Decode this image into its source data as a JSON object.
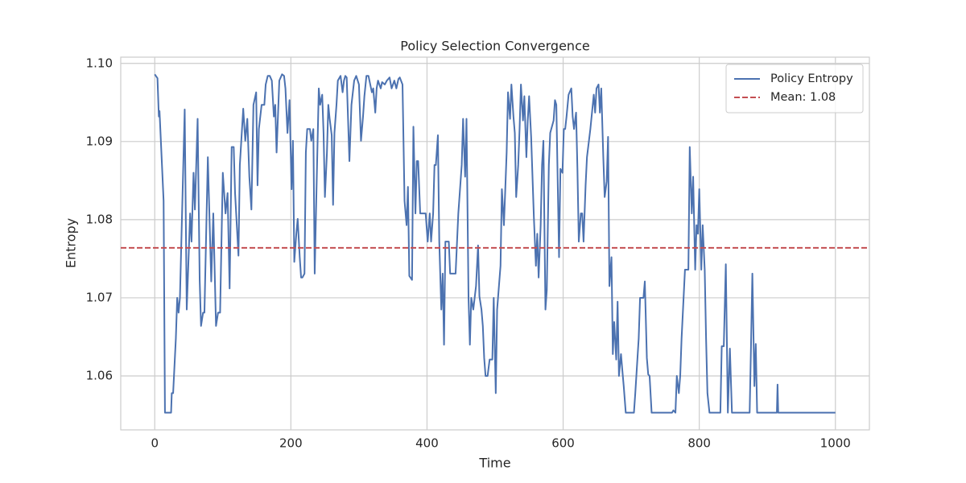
{
  "chart_data": {
    "type": "line",
    "title": "Policy Selection Convergence",
    "x_label": "Time",
    "y_label": "Entropy",
    "x": [
      0,
      4,
      6,
      7,
      13,
      15,
      24,
      25,
      27,
      31,
      33,
      35,
      37,
      44,
      47,
      52,
      54,
      57,
      59,
      63,
      66,
      68,
      71,
      73,
      78,
      83,
      86,
      90,
      93,
      96,
      100,
      104,
      107,
      110,
      113,
      116,
      118,
      123,
      125,
      130,
      133,
      136,
      139,
      142,
      145,
      149,
      151,
      153,
      157,
      161,
      163,
      166,
      169,
      172,
      175,
      177,
      179,
      183,
      187,
      190,
      192,
      195,
      198,
      201,
      203,
      205,
      208,
      210,
      213,
      215,
      217,
      220,
      222,
      224,
      228,
      230,
      233,
      235,
      237,
      241,
      243,
      246,
      248,
      250,
      253,
      255,
      257,
      260,
      262,
      264,
      267,
      269,
      273,
      276,
      278,
      280,
      282,
      286,
      289,
      293,
      296,
      300,
      303,
      306,
      308,
      311,
      314,
      319,
      321,
      324,
      326,
      328,
      332,
      334,
      338,
      341,
      345,
      348,
      352,
      355,
      358,
      360,
      364,
      367,
      370,
      372,
      374,
      378,
      380,
      383,
      385,
      387,
      390,
      392,
      396,
      398,
      401,
      404,
      406,
      409,
      411,
      413,
      416,
      418,
      421,
      423,
      425,
      427,
      430,
      432,
      434,
      437,
      442,
      446,
      451,
      453,
      456,
      458,
      461,
      463,
      465,
      468,
      470,
      472,
      475,
      477,
      480,
      482,
      484,
      486,
      489,
      492,
      496,
      498,
      501,
      503,
      508,
      510,
      513,
      515,
      517,
      519,
      522,
      524,
      527,
      529,
      531,
      534,
      536,
      538,
      541,
      543,
      546,
      548,
      550,
      553,
      557,
      560,
      562,
      564,
      567,
      569,
      571,
      574,
      576,
      579,
      581,
      586,
      588,
      590,
      594,
      596,
      599,
      601,
      603,
      605,
      608,
      612,
      614,
      616,
      619,
      621,
      623,
      626,
      628,
      630,
      633,
      635,
      640,
      645,
      647,
      649,
      652,
      654,
      656,
      659,
      661,
      664,
      666,
      668,
      671,
      673,
      675,
      678,
      680,
      682,
      685,
      687,
      689,
      692,
      704,
      706,
      711,
      713,
      718,
      720,
      723,
      725,
      727,
      730,
      760,
      762,
      765,
      767,
      770,
      772,
      774,
      779,
      784,
      786,
      789,
      791,
      794,
      796,
      798,
      800,
      803,
      805,
      808,
      810,
      812,
      815,
      831,
      833,
      836,
      839,
      842,
      845,
      848,
      874,
      876,
      878,
      881,
      883,
      885,
      914,
      915,
      916,
      1000
    ],
    "series": [
      {
        "name": "Policy Entropy",
        "color": "#4c72b0",
        "values": [
          1.0986,
          1.0981,
          1.0932,
          1.0939,
          1.0824,
          1.0553,
          1.0553,
          1.0578,
          1.0578,
          1.0648,
          1.07,
          1.0681,
          1.07,
          1.0941,
          1.0685,
          1.0808,
          1.0772,
          1.086,
          1.0813,
          1.0929,
          1.0723,
          1.0664,
          1.0681,
          1.0681,
          1.088,
          1.0721,
          1.0808,
          1.0664,
          1.0681,
          1.0681,
          1.086,
          1.0808,
          1.0834,
          1.0712,
          1.0893,
          1.0893,
          1.0834,
          1.0754,
          1.087,
          1.0942,
          1.0901,
          1.0929,
          1.0855,
          1.0813,
          1.0947,
          1.0963,
          1.0844,
          1.0916,
          1.0947,
          1.0947,
          1.0973,
          1.0984,
          1.0984,
          1.0978,
          1.0932,
          1.0947,
          1.0886,
          1.0978,
          1.0986,
          1.0984,
          1.0968,
          1.0911,
          1.0953,
          1.0839,
          1.0901,
          1.0746,
          1.0782,
          1.0801,
          1.0752,
          1.0726,
          1.0726,
          1.0731,
          1.0886,
          1.0916,
          1.0916,
          1.0901,
          1.0916,
          1.0731,
          1.0813,
          1.0968,
          1.0947,
          1.096,
          1.0911,
          1.0829,
          1.0886,
          1.0947,
          1.0929,
          1.0908,
          1.0819,
          1.0911,
          1.0947,
          1.0978,
          1.0984,
          1.0963,
          1.0978,
          1.0984,
          1.0982,
          1.0875,
          1.0947,
          1.0978,
          1.0984,
          1.0973,
          1.0901,
          1.0932,
          1.0958,
          1.0984,
          1.0984,
          1.0963,
          1.0968,
          1.0937,
          1.0968,
          1.0978,
          1.0968,
          1.0976,
          1.0973,
          1.0978,
          1.0982,
          1.0968,
          1.0978,
          1.0968,
          1.098,
          1.0982,
          1.0973,
          1.0824,
          1.0793,
          1.0842,
          1.0728,
          1.0723,
          1.0919,
          1.0808,
          1.0875,
          1.0875,
          1.0808,
          1.0808,
          1.0808,
          1.0808,
          1.0772,
          1.0808,
          1.0772,
          1.0808,
          1.087,
          1.087,
          1.0908,
          1.0772,
          1.0685,
          1.0731,
          1.064,
          1.0772,
          1.0772,
          1.0772,
          1.0731,
          1.0731,
          1.0731,
          1.0808,
          1.087,
          1.0929,
          1.0855,
          1.0929,
          1.07,
          1.064,
          1.07,
          1.0685,
          1.07,
          1.0715,
          1.0767,
          1.0702,
          1.0685,
          1.0664,
          1.0623,
          1.06,
          1.06,
          1.0621,
          1.0621,
          1.07,
          1.0578,
          1.0685,
          1.0741,
          1.0839,
          1.0793,
          1.0839,
          1.0886,
          1.0963,
          1.0929,
          1.0973,
          1.0932,
          1.0911,
          1.0829,
          1.087,
          1.0916,
          1.0973,
          1.0927,
          1.0958,
          1.088,
          1.0927,
          1.0958,
          1.0906,
          1.0803,
          1.0741,
          1.0782,
          1.0726,
          1.0793,
          1.087,
          1.0901,
          1.0685,
          1.071,
          1.087,
          1.0911,
          1.0927,
          1.0953,
          1.0947,
          1.0752,
          1.0865,
          1.086,
          1.0916,
          1.0916,
          1.0932,
          1.096,
          1.0968,
          1.0932,
          1.0916,
          1.0937,
          1.0865,
          1.0772,
          1.0808,
          1.0808,
          1.0772,
          1.0844,
          1.088,
          1.0916,
          1.096,
          1.0937,
          1.0968,
          1.0973,
          1.0937,
          1.0968,
          1.088,
          1.0829,
          1.0849,
          1.0906,
          1.0715,
          1.0752,
          1.0628,
          1.0669,
          1.0621,
          1.0695,
          1.06,
          1.0628,
          1.0607,
          1.0587,
          1.0553,
          1.0553,
          1.0578,
          1.0648,
          1.07,
          1.07,
          1.0721,
          1.0623,
          1.0602,
          1.06,
          1.0553,
          1.0553,
          1.0556,
          1.0553,
          1.06,
          1.0578,
          1.06,
          1.0648,
          1.0736,
          1.0736,
          1.0893,
          1.0808,
          1.0855,
          1.0736,
          1.0793,
          1.0782,
          1.0839,
          1.0736,
          1.0793,
          1.0736,
          1.0648,
          1.0578,
          1.0553,
          1.0553,
          1.0638,
          1.0638,
          1.0743,
          1.0553,
          1.0635,
          1.0553,
          1.0553,
          1.0638,
          1.0731,
          1.0587,
          1.0641,
          1.0553,
          1.0553,
          1.0589,
          1.0553,
          1.0553
        ]
      }
    ],
    "reference_lines": [
      {
        "name": "Mean: 1.08",
        "value": 1.0764,
        "color": "#c44e52",
        "style": "dashed"
      }
    ],
    "xlim": [
      -49.95,
      1049.95
    ],
    "ylim": [
      1.0531,
      1.1008
    ],
    "xticks": [
      0,
      200,
      400,
      600,
      800,
      1000
    ],
    "yticks": [
      1.06,
      1.07,
      1.08,
      1.09,
      {
        "value": 1.1,
        "label": "1.10"
      }
    ],
    "grid": true,
    "legend": "upper right"
  }
}
